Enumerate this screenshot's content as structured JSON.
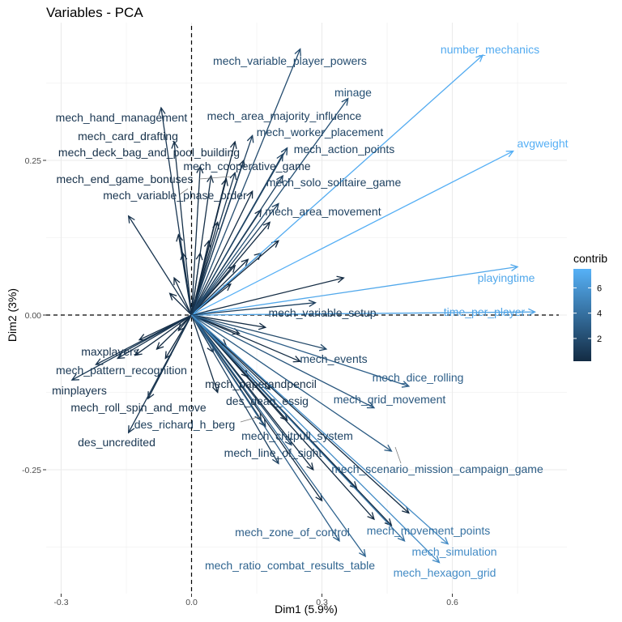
{
  "chart_data": {
    "type": "scatter",
    "title": "Variables - PCA",
    "xlabel": "Dim1 (5.9%)",
    "ylabel": "Dim2 (3%)",
    "xlim": [
      -0.34,
      0.84
    ],
    "ylim": [
      -0.48,
      0.48
    ],
    "x_ticks": [
      -0.3,
      0.0,
      0.3,
      0.6
    ],
    "x_tick_labels": [
      "-0.3",
      "0.0",
      "0.3",
      "0.6"
    ],
    "y_ticks": [
      -0.25,
      0.0,
      0.25
    ],
    "y_tick_labels": [
      "-0.25",
      "0.00",
      "0.25"
    ],
    "grid": true,
    "legend": {
      "title": "contrib",
      "position": "right",
      "ticks": [
        2,
        4,
        6
      ],
      "tick_labels": [
        "2",
        "4",
        "6"
      ],
      "min": 0.2,
      "max": 7.5
    },
    "colors": {
      "low": "#132b43",
      "high": "#56b1f7",
      "background": "#ffffff",
      "grid": "#ebebeb"
    },
    "labeled_variables": [
      {
        "name": "number_mechanics",
        "x": 0.67,
        "y": 0.42,
        "contrib": 7.2
      },
      {
        "name": "avgweight",
        "x": 0.74,
        "y": 0.265,
        "contrib": 7.4
      },
      {
        "name": "playingtime",
        "x": 0.75,
        "y": 0.078,
        "contrib": 7.0
      },
      {
        "name": "time_per_player",
        "x": 0.79,
        "y": 0.005,
        "contrib": 6.8
      },
      {
        "name": "mech_variable_player_powers",
        "x": 0.25,
        "y": 0.43,
        "contrib": 2.0
      },
      {
        "name": "minage",
        "x": 0.36,
        "y": 0.35,
        "contrib": 2.2
      },
      {
        "name": "mech_hand_management",
        "x": -0.07,
        "y": 0.335,
        "contrib": 0.8
      },
      {
        "name": "mech_area_majority_influence",
        "x": 0.14,
        "y": 0.29,
        "contrib": 1.3
      },
      {
        "name": "mech_worker_placement",
        "x": 0.22,
        "y": 0.27,
        "contrib": 1.6
      },
      {
        "name": "mech_card_drafting",
        "x": -0.04,
        "y": 0.28,
        "contrib": 0.5
      },
      {
        "name": "mech_action_points",
        "x": 0.21,
        "y": 0.26,
        "contrib": 1.5
      },
      {
        "name": "mech_deck_bag_and_pool_building",
        "x": 0.02,
        "y": 0.24,
        "contrib": 0.4
      },
      {
        "name": "mech_cooperative_game",
        "x": 0.1,
        "y": 0.23,
        "contrib": 0.8
      },
      {
        "name": "mech_end_game_bonuses",
        "x": 0.045,
        "y": 0.225,
        "contrib": 0.4
      },
      {
        "name": "mech_solo_solitaire_game",
        "x": 0.21,
        "y": 0.225,
        "contrib": 1.4
      },
      {
        "name": "mech_variable_phase_order",
        "x": -0.145,
        "y": 0.16,
        "contrib": 0.7
      },
      {
        "name": "mech_area_movement",
        "x": 0.2,
        "y": 0.18,
        "contrib": 1.3
      },
      {
        "name": "mech_variable_setup",
        "x": 0.285,
        "y": 0.02,
        "contrib": 1.3
      },
      {
        "name": "mech_events",
        "x": 0.31,
        "y": -0.055,
        "contrib": 1.7
      },
      {
        "name": "mech_dice_rolling",
        "x": 0.5,
        "y": -0.115,
        "contrib": 3.0
      },
      {
        "name": "maxplayers",
        "x": -0.17,
        "y": -0.07,
        "contrib": 0.6
      },
      {
        "name": "mech_pattern_recognition",
        "x": -0.275,
        "y": -0.105,
        "contrib": 0.9
      },
      {
        "name": "minplayers",
        "x": -0.22,
        "y": -0.08,
        "contrib": 0.7
      },
      {
        "name": "mech_roll_spin_and_move",
        "x": -0.1,
        "y": -0.135,
        "contrib": 0.5
      },
      {
        "name": "mech_paperandpencil",
        "x": 0.06,
        "y": -0.125,
        "contrib": 0.3
      },
      {
        "name": "des_dean_essig",
        "x": 0.16,
        "y": -0.17,
        "contrib": 0.9
      },
      {
        "name": "mech_grid_movement",
        "x": 0.42,
        "y": -0.15,
        "contrib": 2.5
      },
      {
        "name": "des_richard_h_berg",
        "x": 0.17,
        "y": -0.18,
        "contrib": 1.1
      },
      {
        "name": "des_uncredited",
        "x": -0.145,
        "y": -0.19,
        "contrib": 0.8
      },
      {
        "name": "mech_chitpull_system",
        "x": 0.23,
        "y": -0.21,
        "contrib": 1.6
      },
      {
        "name": "mech_line_of_sight",
        "x": 0.2,
        "y": -0.24,
        "contrib": 1.4
      },
      {
        "name": "mech_scenario_mission_campaign_game",
        "x": 0.46,
        "y": -0.22,
        "contrib": 2.8
      },
      {
        "name": "mech_zone_of_control",
        "x": 0.34,
        "y": -0.365,
        "contrib": 3.0
      },
      {
        "name": "mech_ratio_combat_results_table",
        "x": 0.4,
        "y": -0.39,
        "contrib": 3.3
      },
      {
        "name": "mech_movement_points",
        "x": 0.49,
        "y": -0.365,
        "contrib": 4.0
      },
      {
        "name": "mech_simulation",
        "x": 0.59,
        "y": -0.37,
        "contrib": 5.5
      },
      {
        "name": "mech_hexagon_grid",
        "x": 0.57,
        "y": -0.4,
        "contrib": 5.5
      }
    ],
    "unlabeled_variables": [
      {
        "x": 0.35,
        "y": 0.06
      },
      {
        "x": 0.2,
        "y": 0.12
      },
      {
        "x": 0.18,
        "y": 0.15
      },
      {
        "x": 0.16,
        "y": 0.17
      },
      {
        "x": 0.14,
        "y": 0.2
      },
      {
        "x": 0.12,
        "y": 0.25
      },
      {
        "x": 0.1,
        "y": 0.28
      },
      {
        "x": 0.08,
        "y": 0.22
      },
      {
        "x": 0.06,
        "y": 0.15
      },
      {
        "x": 0.04,
        "y": 0.12
      },
      {
        "x": 0.02,
        "y": 0.1
      },
      {
        "x": -0.02,
        "y": 0.1
      },
      {
        "x": -0.03,
        "y": 0.13
      },
      {
        "x": -0.04,
        "y": 0.06
      },
      {
        "x": -0.05,
        "y": 0.035
      },
      {
        "x": 0.1,
        "y": 0.08
      },
      {
        "x": 0.13,
        "y": 0.09
      },
      {
        "x": 0.16,
        "y": 0.1
      },
      {
        "x": 0.09,
        "y": 0.05
      },
      {
        "x": 0.17,
        "y": -0.02
      },
      {
        "x": 0.11,
        "y": -0.03
      },
      {
        "x": 0.25,
        "y": -0.075
      },
      {
        "x": -0.12,
        "y": -0.04
      },
      {
        "x": -0.13,
        "y": -0.065
      },
      {
        "x": -0.08,
        "y": -0.055
      },
      {
        "x": -0.06,
        "y": -0.07
      },
      {
        "x": -0.03,
        "y": -0.025
      },
      {
        "x": 0.05,
        "y": -0.06
      },
      {
        "x": 0.08,
        "y": -0.05
      },
      {
        "x": 0.13,
        "y": -0.1
      },
      {
        "x": 0.18,
        "y": -0.12
      },
      {
        "x": 0.22,
        "y": -0.17
      },
      {
        "x": 0.28,
        "y": -0.25
      },
      {
        "x": 0.3,
        "y": -0.3
      },
      {
        "x": 0.42,
        "y": -0.33
      },
      {
        "x": 0.46,
        "y": -0.34
      },
      {
        "x": 0.5,
        "y": -0.32
      },
      {
        "x": 0.38,
        "y": -0.28
      }
    ]
  }
}
